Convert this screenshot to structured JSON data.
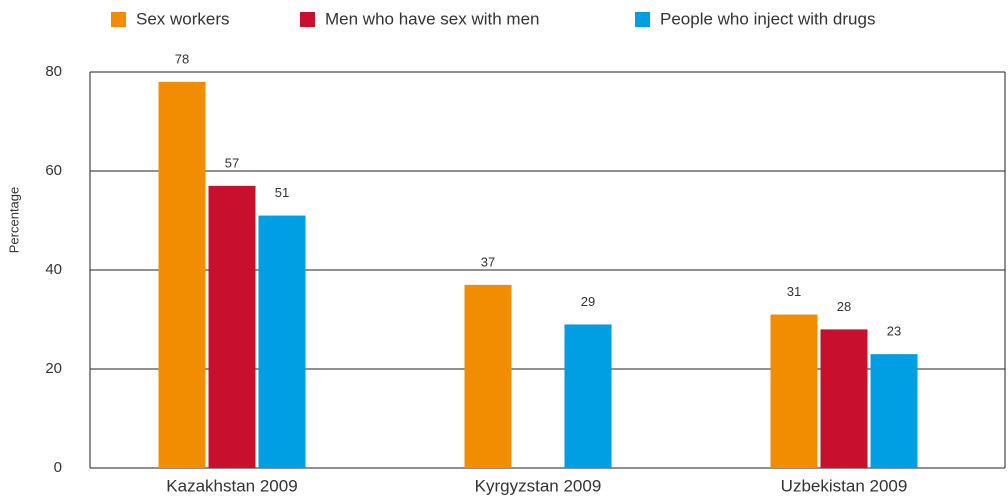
{
  "chart_data": {
    "type": "bar",
    "categories": [
      "Kazakhstan 2009",
      "Kyrgyzstan 2009",
      "Uzbekistan 2009"
    ],
    "series": [
      {
        "name": "Sex workers",
        "color": "#f28c00",
        "values": [
          78,
          37,
          31
        ]
      },
      {
        "name": "Men who have sex with men",
        "color": "#c8102e",
        "values": [
          57,
          null,
          28
        ]
      },
      {
        "name": "People who inject with drugs",
        "color": "#009fe3",
        "values": [
          51,
          29,
          23
        ]
      }
    ],
    "y_label": "Percentage",
    "ylim": [
      0,
      80
    ],
    "yticks": [
      0,
      20,
      40,
      60,
      80
    ],
    "grid": true,
    "legend": "top"
  }
}
